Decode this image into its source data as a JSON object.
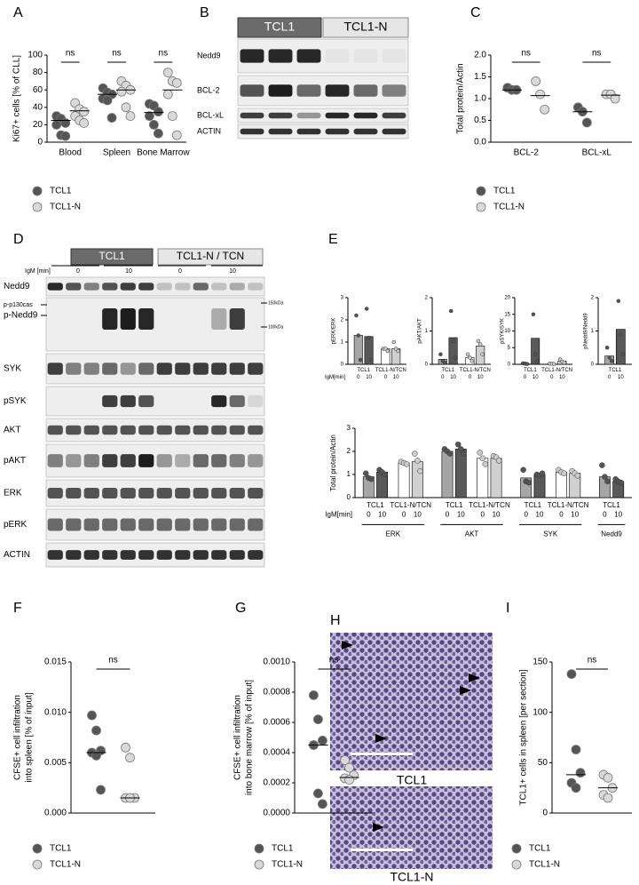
{
  "chart_data": [
    {
      "type": "dot",
      "label": "A",
      "ylabel": "Ki67+ cells [% of CLL]",
      "categories": [
        "Blood",
        "Spleen",
        "Bone Marrow"
      ],
      "ylim": [
        0,
        100
      ],
      "yticks": [
        0,
        20,
        40,
        60,
        80,
        100
      ],
      "annotations": [
        "ns",
        "ns",
        "ns"
      ],
      "series": [
        {
          "name": "TCL1",
          "color": "#555555",
          "values": [
            [
              30,
              27,
              22,
              20,
              8,
              7
            ],
            [
              62,
              57,
              55,
              50,
              48,
              28
            ],
            [
              44,
              42,
              35,
              30,
              20,
              10
            ]
          ],
          "medians": [
            25,
            55,
            34
          ]
        },
        {
          "name": "TCL1-N",
          "color": "#d9d9d9",
          "values": [
            [
              45,
              38,
              35,
              30,
              25,
              22
            ],
            [
              70,
              65,
              60,
              58,
              40,
              30
            ],
            [
              80,
              70,
              68,
              55,
              30,
              8
            ]
          ],
          "medians": [
            36,
            60,
            60
          ]
        }
      ]
    },
    {
      "type": "dot",
      "label": "C",
      "ylabel": "Total protein/Actin",
      "categories": [
        "BCL-2",
        "BCL-xL"
      ],
      "ylim": [
        0,
        2
      ],
      "yticks": [
        {
          "value": 0,
          "label": "0.0"
        },
        0.5,
        {
          "value": 1,
          "label": "1.0"
        },
        1.5,
        {
          "value": 2,
          "label": "2.0"
        }
      ],
      "annotations": [
        "ns",
        "ns"
      ],
      "series": [
        {
          "name": "TCL1",
          "color": "#555555",
          "values": [
            [
              1.25,
              1.2,
              1.2
            ],
            [
              0.8,
              0.7,
              0.45
            ]
          ],
          "medians": [
            1.2,
            0.7
          ]
        },
        {
          "name": "TCL1-N",
          "color": "#d9d9d9",
          "values": [
            [
              1.4,
              1.1,
              0.75
            ],
            [
              1.1,
              1.1,
              1.0
            ]
          ],
          "medians": [
            1.07,
            1.08
          ]
        }
      ]
    },
    {
      "type": "bar_points",
      "label": "E",
      "ylabel": "pERK/ERK",
      "xlabel": "IgM[min]",
      "ylim": [
        0,
        3
      ],
      "yticks": [
        0,
        1,
        2,
        3
      ],
      "groups": [
        {
          "name": "TCL1",
          "categories": [
            "0",
            "10"
          ],
          "colors": [
            "#a6a6a6",
            "#595959"
          ],
          "point_color": "#555555",
          "values": [
            1.3,
            1.25
          ],
          "points": [
            [
              2.2,
              1.3,
              0.2
            ],
            [
              2.5,
              1.2,
              0.2
            ]
          ]
        },
        {
          "name": "TCL1-N/TCN",
          "categories": [
            "0",
            "10"
          ],
          "colors": [
            "#ffffff",
            "#d0d0d0"
          ],
          "point_color": "#cccccc",
          "values": [
            0.7,
            0.7
          ],
          "points": [
            [
              0.7,
              0.7,
              0.6
            ],
            [
              1.0,
              0.7,
              0.6
            ]
          ]
        }
      ]
    },
    {
      "type": "bar_points",
      "ylabel": "pAKT/AKT",
      "ylim": [
        0,
        2
      ],
      "yticks": [
        0,
        1,
        2
      ],
      "groups": [
        {
          "name": "TCL1",
          "categories": [
            "0",
            "10"
          ],
          "colors": [
            "#a6a6a6",
            "#595959"
          ],
          "point_color": "#555555",
          "values": [
            0.15,
            0.8
          ],
          "points": [
            [
              0.3,
              0.1,
              0.05
            ],
            [
              1.6,
              0.7,
              0.2
            ]
          ]
        },
        {
          "name": "TCL1-N/TCN",
          "categories": [
            "0",
            "10"
          ],
          "colors": [
            "#ffffff",
            "#d0d0d0"
          ],
          "point_color": "#cccccc",
          "values": [
            0.2,
            0.55
          ],
          "points": [
            [
              0.3,
              0.2,
              0.1
            ],
            [
              0.7,
              0.6,
              0.3
            ]
          ]
        }
      ]
    },
    {
      "type": "bar_points",
      "ylabel": "pSYK/SYK",
      "ylim": [
        0,
        20
      ],
      "yticks": [
        0,
        5,
        10,
        15,
        20
      ],
      "groups": [
        {
          "name": "TCL1",
          "categories": [
            "0",
            "10"
          ],
          "colors": [
            "#a6a6a6",
            "#595959"
          ],
          "point_color": "#555555",
          "values": [
            0.2,
            7.8
          ],
          "points": [
            [
              0.3,
              0.2,
              0.1
            ],
            [
              15,
              3,
              1
            ]
          ]
        },
        {
          "name": "TCL1-N/TCN",
          "categories": [
            "0",
            "10"
          ],
          "colors": [
            "#ffffff",
            "#d0d0d0"
          ],
          "point_color": "#cccccc",
          "values": [
            0.2,
            1.0
          ],
          "points": [
            [
              0.2,
              0.2,
              0.1
            ],
            [
              1.5,
              0.8,
              0.5
            ]
          ]
        }
      ]
    },
    {
      "type": "bar_points",
      "ylabel": "pNedd9/Nedd9",
      "ylim": [
        0,
        2
      ],
      "yticks": [
        0,
        1,
        2
      ],
      "groups": [
        {
          "name": "TCL1",
          "categories": [
            "0",
            "10"
          ],
          "colors": [
            "#a6a6a6",
            "#595959"
          ],
          "point_color": "#555555",
          "values": [
            0.25,
            1.05
          ],
          "points": [
            [
              0.5,
              0.2,
              0.1
            ],
            [
              1.9,
              0.9,
              0.3
            ]
          ]
        }
      ]
    },
    {
      "type": "bar_points",
      "ylabel": "Total protein/Actin",
      "xlabel": "IgM[min]",
      "ylim": [
        0,
        3
      ],
      "yticks": [
        0,
        1,
        2,
        3
      ],
      "sections": [
        {
          "name": "ERK",
          "groups": [
            {
              "name": "TCL1",
              "categories": [
                "0",
                "10"
              ],
              "colors": [
                "#a6a6a6",
                "#595959"
              ],
              "point_color": "#555555",
              "values": [
                0.9,
                1.1
              ],
              "points": [
                [
                  1.05,
                  0.85,
                  0.8
                ],
                [
                  1.2,
                  1.1,
                  1.0
                ]
              ]
            },
            {
              "name": "TCL1-N/TCN",
              "categories": [
                "0",
                "10"
              ],
              "colors": [
                "#ffffff",
                "#d0d0d0"
              ],
              "point_color": "#cccccc",
              "values": [
                1.5,
                1.55
              ],
              "points": [
                [
                  1.55,
                  1.5,
                  1.45
                ],
                [
                  1.9,
                  1.6,
                  1.15
                ]
              ]
            }
          ]
        },
        {
          "name": "AKT",
          "groups": [
            {
              "name": "TCL1",
              "categories": [
                "0",
                "10"
              ],
              "colors": [
                "#a6a6a6",
                "#595959"
              ],
              "point_color": "#555555",
              "values": [
                2.0,
                2.1
              ],
              "points": [
                [
                  2.1,
                  2.0,
                  1.9
                ],
                [
                  2.3,
                  2.1,
                  1.9
                ]
              ]
            },
            {
              "name": "TCL1-N/TCN",
              "categories": [
                "0",
                "10"
              ],
              "colors": [
                "#ffffff",
                "#d0d0d0"
              ],
              "point_color": "#cccccc",
              "values": [
                1.7,
                1.7
              ],
              "points": [
                [
                  1.95,
                  1.7,
                  1.45
                ],
                [
                  1.8,
                  1.75,
                  1.6
                ]
              ]
            }
          ]
        },
        {
          "name": "SYK",
          "groups": [
            {
              "name": "TCL1",
              "categories": [
                "0",
                "10"
              ],
              "colors": [
                "#a6a6a6",
                "#595959"
              ],
              "point_color": "#555555",
              "values": [
                0.85,
                1.0
              ],
              "points": [
                [
                  1.2,
                  0.7,
                  0.65
                ],
                [
                  1.0,
                  0.95,
                  1.05
                ]
              ]
            },
            {
              "name": "TCL1-N/TCN",
              "categories": [
                "0",
                "10"
              ],
              "colors": [
                "#ffffff",
                "#d0d0d0"
              ],
              "point_color": "#cccccc",
              "values": [
                1.1,
                1.05
              ],
              "points": [
                [
                  1.2,
                  1.1,
                  1.05
                ],
                [
                  1.15,
                  1.05,
                  0.95
                ]
              ]
            }
          ]
        },
        {
          "name": "Nedd9",
          "groups": [
            {
              "name": "TCL1",
              "categories": [
                "0",
                "10"
              ],
              "colors": [
                "#a6a6a6",
                "#595959"
              ],
              "point_color": "#555555",
              "values": [
                0.9,
                0.7
              ],
              "points": [
                [
                  1.4,
                  0.9,
                  0.7
                ],
                [
                  0.8,
                  0.7,
                  0.65
                ]
              ]
            }
          ]
        }
      ]
    },
    {
      "type": "dot",
      "label": "F",
      "ylabel": [
        "CFSE+ cell infiltration",
        "into spleen [% of input]"
      ],
      "categories": [
        null
      ],
      "ylim": [
        0,
        0.015
      ],
      "yticks": [
        {
          "value": 0,
          "label": "0.000"
        },
        0.005,
        {
          "value": 0.01,
          "label": "0.010"
        },
        0.015
      ],
      "annotations": [
        "ns"
      ],
      "series": [
        {
          "name": "TCL1",
          "color": "#555555",
          "values": [
            [
              0.0097,
              0.0082,
              0.0062,
              0.006,
              0.0057,
              0.0023
            ]
          ],
          "medians": [
            0.006
          ]
        },
        {
          "name": "TCL1-N",
          "color": "#d9d9d9",
          "values": [
            [
              0.0065,
              0.0055,
              0.0015,
              0.0015,
              0.0015
            ]
          ],
          "medians": [
            0.0015
          ]
        }
      ]
    },
    {
      "type": "dot",
      "label": "G",
      "ylabel": [
        "CFSE+ cell infiltration",
        "into bone marrow [% of input]"
      ],
      "categories": [
        null
      ],
      "ylim": [
        0,
        0.001
      ],
      "yticks": [
        {
          "value": 0,
          "label": "0.0000"
        },
        0.0002,
        0.0004,
        0.0006,
        0.0008,
        {
          "value": 0.001,
          "label": "0.0010"
        }
      ],
      "annotations": [
        "ns"
      ],
      "series": [
        {
          "name": "TCL1",
          "color": "#555555",
          "values": [
            [
              0.00078,
              0.00062,
              0.00048,
              0.00045,
              0.00013,
              6e-05
            ]
          ],
          "medians": [
            0.00045
          ]
        },
        {
          "name": "TCL1-N",
          "color": "#d9d9d9",
          "values": [
            [
              0.00035,
              0.0003,
              0.00025,
              0.00023,
              0.00022
            ]
          ],
          "medians": [
            0.000235
          ]
        }
      ]
    },
    {
      "type": "dot",
      "label": "I",
      "ylabel": "TCL1+ cells in spleen [per section]",
      "categories": [
        null
      ],
      "ylim": [
        0,
        150
      ],
      "yticks": [
        0,
        50,
        100,
        150
      ],
      "annotations": [
        "ns"
      ],
      "series": [
        {
          "name": "TCL1",
          "color": "#555555",
          "values": [
            [
              138,
              63,
              40,
              30,
              25
            ]
          ],
          "medians": [
            38
          ]
        },
        {
          "name": "TCL1-N",
          "color": "#d9d9d9",
          "values": [
            [
              38,
              35,
              25,
              18,
              15
            ]
          ],
          "medians": [
            25
          ]
        }
      ]
    }
  ],
  "blot_b": {
    "label": "B",
    "headers": [
      "TCL1",
      "TCL1-N"
    ],
    "rows": [
      "Nedd9",
      "BCL-2",
      "BCL-xL",
      "ACTIN"
    ]
  },
  "blot_d": {
    "label": "D",
    "headers": [
      "TCL1",
      "TCL1-N / TCN"
    ],
    "time_label": "IgM [min]",
    "times": [
      "0",
      "10",
      "0",
      "10"
    ],
    "rows": [
      "Nedd9",
      "p-p130cas",
      "p-Nedd9",
      "SYK",
      "pSYK",
      "AKT",
      "pAKT",
      "ERK",
      "pERK",
      "ACTIN"
    ],
    "markers": [
      "150kDa",
      "100kDa"
    ]
  },
  "histology_h": {
    "label": "H",
    "captions": [
      "TCL1",
      "TCL1-N"
    ]
  }
}
